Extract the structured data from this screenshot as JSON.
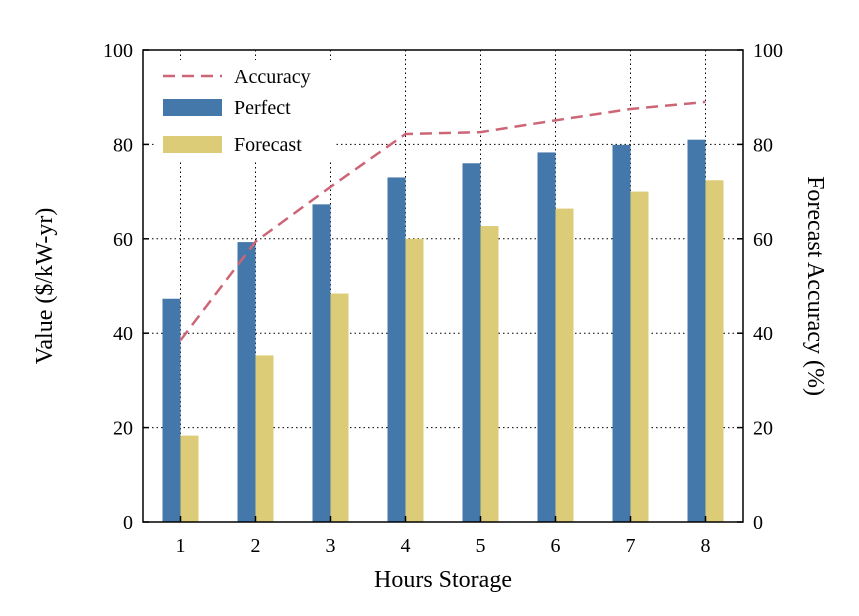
{
  "chart_data": {
    "type": "bar",
    "title": "",
    "xlabel": "Hours Storage",
    "ylabel": "Value ($/kW-yr)",
    "y2label": "Forecast Accuracy (%)",
    "categories": [
      "1",
      "2",
      "3",
      "4",
      "5",
      "6",
      "7",
      "8"
    ],
    "ylim": [
      0,
      100
    ],
    "y2lim": [
      0,
      100
    ],
    "yticks": [
      "0",
      "20",
      "40",
      "60",
      "80",
      "100"
    ],
    "y2ticks": [
      "0",
      "20",
      "40",
      "60",
      "80",
      "100"
    ],
    "grid": true,
    "legend_position": "top-left",
    "series": [
      {
        "name": "Perfect",
        "kind": "bar",
        "axis": "left",
        "color": "#4477aa",
        "values": [
          47.3,
          59.3,
          67.3,
          73.0,
          76.0,
          78.3,
          79.9,
          81.0
        ]
      },
      {
        "name": "Forecast",
        "kind": "bar",
        "axis": "left",
        "color": "#ddcc77",
        "values": [
          18.3,
          35.3,
          48.4,
          60.0,
          62.7,
          66.4,
          70.0,
          72.4
        ]
      },
      {
        "name": "Accuracy",
        "kind": "line",
        "style": "dashed",
        "axis": "right",
        "color": "#cc6677",
        "values": [
          38.5,
          59.4,
          71.0,
          82.2,
          82.6,
          85.1,
          87.5,
          89.0
        ]
      }
    ]
  }
}
